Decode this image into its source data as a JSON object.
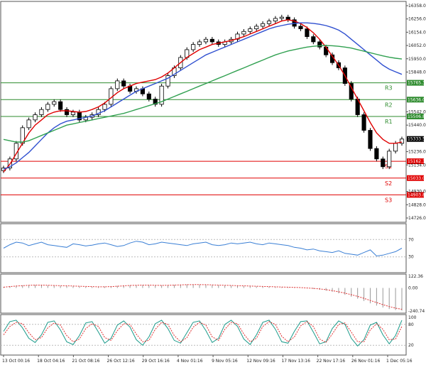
{
  "chart_data": [
    {
      "type": "candlestick",
      "panel": "price",
      "ylim": [
        14726.0,
        16358.0
      ],
      "y_ticks": [
        14726.0,
        14828.0,
        14930.0,
        15134.0,
        15236.0,
        15440.0,
        15542.0,
        15848.0,
        15950.0,
        16052.0,
        16154.0,
        16256.0,
        16358.0
      ],
      "current_price": "15333.5",
      "current_price_value": 15333.5,
      "closes": [
        15110,
        15180,
        15300,
        15420,
        15480,
        15520,
        15560,
        15600,
        15620,
        15560,
        15520,
        15540,
        15480,
        15500,
        15520,
        15560,
        15600,
        15720,
        15780,
        15740,
        15700,
        15720,
        15680,
        15640,
        15600,
        15740,
        15820,
        15880,
        15960,
        16020,
        16060,
        16080,
        16100,
        16080,
        16060,
        16080,
        16100,
        16140,
        16160,
        16180,
        16200,
        16220,
        16240,
        16260,
        16270,
        16250,
        16200,
        16180,
        16120,
        16080,
        16040,
        15980,
        15920,
        15880,
        15760,
        15640,
        15520,
        15400,
        15260,
        15180,
        15120,
        15240,
        15300,
        15333
      ],
      "series": [
        {
          "name": "MA-fast",
          "color": "#e00000",
          "values": [
            15080,
            15140,
            15220,
            15300,
            15380,
            15440,
            15480,
            15520,
            15540,
            15550,
            15550,
            15545,
            15540,
            15545,
            15560,
            15580,
            15610,
            15650,
            15690,
            15720,
            15740,
            15760,
            15770,
            15780,
            15790,
            15810,
            15840,
            15880,
            15920,
            15960,
            15990,
            16020,
            16040,
            16060,
            16070,
            16080,
            16090,
            16105,
            16120,
            16140,
            16160,
            16180,
            16200,
            16220,
            16240,
            16250,
            16240,
            16220,
            16190,
            16150,
            16100,
            16040,
            15970,
            15900,
            15820,
            15730,
            15640,
            15550,
            15460,
            15380,
            15330,
            15300,
            15300,
            15310
          ]
        },
        {
          "name": "MA-medium",
          "color": "#3050d0",
          "values": [
            15100,
            15120,
            15150,
            15190,
            15230,
            15280,
            15330,
            15380,
            15420,
            15450,
            15470,
            15480,
            15490,
            15500,
            15510,
            15530,
            15550,
            15580,
            15610,
            15640,
            15670,
            15700,
            15720,
            15740,
            15760,
            15780,
            15800,
            15830,
            15860,
            15890,
            15920,
            15950,
            15980,
            16000,
            16020,
            16040,
            16060,
            16080,
            16100,
            16120,
            16140,
            16160,
            16180,
            16195,
            16205,
            16215,
            16222,
            16226,
            16226,
            16222,
            16215,
            16205,
            16190,
            16170,
            16140,
            16100,
            16060,
            16020,
            15980,
            15940,
            15900,
            15870,
            15850,
            15830
          ]
        },
        {
          "name": "MA-slow",
          "color": "#30a050",
          "values": [
            15330,
            15320,
            15310,
            15310,
            15320,
            15340,
            15360,
            15380,
            15400,
            15420,
            15440,
            15450,
            15460,
            15470,
            15480,
            15490,
            15500,
            15510,
            15520,
            15530,
            15545,
            15560,
            15575,
            15590,
            15605,
            15620,
            15640,
            15660,
            15680,
            15700,
            15720,
            15740,
            15760,
            15780,
            15800,
            15820,
            15840,
            15860,
            15880,
            15900,
            15920,
            15940,
            15960,
            15980,
            15995,
            16010,
            16020,
            16030,
            16040,
            16046,
            16050,
            16052,
            16050,
            16046,
            16040,
            16032,
            16020,
            16008,
            15996,
            15984,
            15972,
            15962,
            15954,
            15948
          ]
        }
      ],
      "levels": [
        {
          "name": "R3",
          "value": 15765.3,
          "label": "15765.3",
          "color": "#2e8b2e"
        },
        {
          "name": "R2",
          "value": 15636.0,
          "label": "15636.0",
          "color": "#2e8b2e"
        },
        {
          "name": "R1",
          "value": 15506.8,
          "label": "15506.8",
          "color": "#2e8b2e"
        },
        {
          "name": "S1",
          "value": 15162.3,
          "label": "15162.3",
          "color": "#e00000"
        },
        {
          "name": "S2",
          "value": 15033.0,
          "label": "15033.0",
          "color": "#e00000"
        },
        {
          "name": "S3",
          "value": 14903.8,
          "label": "14903.8",
          "color": "#e00000"
        }
      ]
    },
    {
      "type": "line",
      "panel": "oscillator-1",
      "ylim": [
        0,
        100
      ],
      "y_ticks": [
        70,
        30
      ],
      "series": [
        {
          "name": "",
          "color": "#3a7fd5",
          "values": [
            50,
            58,
            64,
            62,
            56,
            60,
            64,
            58,
            56,
            54,
            52,
            60,
            58,
            55,
            57,
            60,
            62,
            58,
            54,
            56,
            62,
            66,
            64,
            58,
            60,
            64,
            62,
            60,
            58,
            56,
            60,
            62,
            64,
            58,
            56,
            58,
            62,
            60,
            62,
            64,
            60,
            58,
            62,
            60,
            58,
            56,
            52,
            50,
            46,
            48,
            44,
            42,
            40,
            44,
            38,
            36,
            34,
            40,
            46,
            32,
            34,
            38,
            42,
            50
          ]
        }
      ]
    },
    {
      "type": "bar",
      "panel": "oscillator-2",
      "ylim": [
        -240.74,
        122.36
      ],
      "y_ticks": [
        122.36,
        0.0,
        -240.74
      ],
      "y_tick_labels": [
        "122.36",
        "0.00",
        "-240.74"
      ],
      "values": [
        10,
        18,
        24,
        28,
        30,
        30,
        28,
        26,
        24,
        22,
        20,
        18,
        16,
        14,
        12,
        10,
        14,
        18,
        22,
        26,
        28,
        30,
        30,
        28,
        26,
        28,
        30,
        32,
        34,
        36,
        36,
        34,
        32,
        30,
        28,
        26,
        24,
        22,
        20,
        18,
        16,
        14,
        12,
        10,
        8,
        6,
        4,
        0,
        -4,
        -10,
        -18,
        -28,
        -40,
        -56,
        -72,
        -92,
        -112,
        -136,
        -160,
        -184,
        -204,
        -220,
        -230,
        -236
      ],
      "series": [
        {
          "name": "",
          "color": "#e03030",
          "values": [
            8,
            14,
            20,
            24,
            28,
            30,
            30,
            28,
            26,
            24,
            22,
            20,
            18,
            16,
            14,
            12,
            12,
            14,
            18,
            22,
            26,
            28,
            30,
            30,
            28,
            27,
            28,
            30,
            32,
            34,
            35,
            35,
            34,
            32,
            30,
            28,
            26,
            24,
            22,
            20,
            18,
            16,
            14,
            12,
            10,
            8,
            6,
            4,
            0,
            -4,
            -10,
            -18,
            -28,
            -40,
            -54,
            -70,
            -88,
            -108,
            -130,
            -152,
            -174,
            -194,
            -210,
            -222
          ]
        }
      ]
    },
    {
      "type": "line",
      "panel": "oscillator-3",
      "ylim": [
        0,
        100
      ],
      "y_ticks": [
        100,
        80,
        20
      ],
      "series": [
        {
          "name": "",
          "color": "#1a9a8a",
          "values": [
            60,
            88,
            92,
            70,
            40,
            28,
            50,
            86,
            90,
            64,
            30,
            22,
            48,
            84,
            88,
            58,
            26,
            40,
            78,
            90,
            72,
            36,
            20,
            44,
            82,
            92,
            68,
            34,
            26,
            56,
            86,
            90,
            62,
            28,
            40,
            80,
            92,
            74,
            38,
            22,
            50,
            86,
            92,
            66,
            30,
            26,
            60,
            88,
            90,
            58,
            24,
            30,
            68,
            90,
            80,
            40,
            18,
            36,
            78,
            86,
            50,
            24,
            48,
            92
          ]
        },
        {
          "name": "",
          "color": "#e03030",
          "values": [
            50,
            74,
            86,
            82,
            56,
            36,
            42,
            70,
            84,
            78,
            48,
            30,
            38,
            68,
            82,
            74,
            42,
            34,
            62,
            82,
            80,
            52,
            30,
            34,
            66,
            86,
            80,
            48,
            30,
            42,
            72,
            86,
            78,
            44,
            34,
            66,
            86,
            82,
            52,
            30,
            40,
            74,
            88,
            80,
            46,
            30,
            44,
            76,
            88,
            74,
            38,
            28,
            52,
            80,
            84,
            58,
            30,
            30,
            64,
            82,
            66,
            36,
            38,
            74
          ]
        }
      ]
    }
  ],
  "x_axis": {
    "labels": [
      "13 Oct 00:16",
      "18 Oct 04:16",
      "21 Oct 08:16",
      "26 Oct 12:16",
      "29 Oct 16:16",
      "4 Nov 01:16",
      "9 Nov 05:16",
      "12 Nov 09:16",
      "17 Nov 13:16",
      "22 Nov 17:16",
      "26 Nov 01:16",
      "1 Dec 05:16"
    ]
  }
}
